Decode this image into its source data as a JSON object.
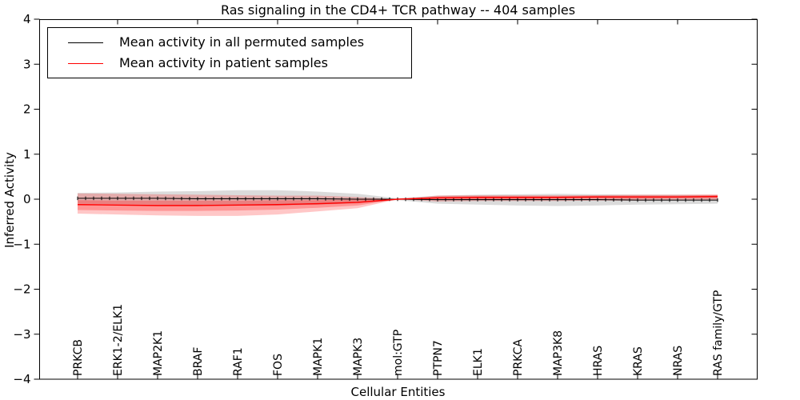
{
  "title": "Ras signaling in the CD4+ TCR pathway -- 404 samples",
  "chart_data": {
    "type": "line",
    "title": "Ras signaling in the CD4+ TCR pathway -- 404 samples",
    "xlabel": "Cellular Entities",
    "ylabel": "Inferred Activity",
    "ylim": [
      -4,
      4
    ],
    "yticks": [
      4,
      3,
      2,
      1,
      0,
      -1,
      -2,
      -3,
      -4
    ],
    "ytick_labels": [
      "4",
      "3",
      "2",
      "1",
      "0",
      "−1",
      "−2",
      "−3",
      "−4"
    ],
    "grid": false,
    "legend_position": "upper left",
    "categories": [
      "PRKCB",
      "ERK1-2/ELK1",
      "MAP2K1",
      "BRAF",
      "RAF1",
      "FOS",
      "MAPK1",
      "MAPK3",
      "mol:GTP",
      "PTPN7",
      "ELK1",
      "PRKCA",
      "MAP3K8",
      "HRAS",
      "KRAS",
      "NRAS",
      "RAS family/GTP"
    ],
    "series": [
      {
        "name": "Mean activity in all permuted samples",
        "color": "#000000",
        "marker": "plus",
        "values": [
          0.02,
          0.02,
          0.02,
          0.01,
          0.01,
          0.01,
          0.01,
          0.0,
          0.0,
          -0.01,
          -0.01,
          -0.01,
          -0.01,
          -0.01,
          -0.02,
          -0.02,
          -0.02
        ]
      },
      {
        "name": "Mean activity in patient samples",
        "color": "#ff0000",
        "marker": "none",
        "values": [
          -0.12,
          -0.13,
          -0.14,
          -0.14,
          -0.13,
          -0.12,
          -0.1,
          -0.07,
          0.0,
          0.03,
          0.04,
          0.04,
          0.04,
          0.05,
          0.05,
          0.05,
          0.06
        ]
      }
    ],
    "bands": [
      {
        "name": "permuted-samples-range",
        "color": "#888888",
        "opacity": 0.3,
        "upper": [
          0.14,
          0.15,
          0.17,
          0.18,
          0.2,
          0.2,
          0.17,
          0.12,
          0.02,
          0.08,
          0.1,
          0.11,
          0.12,
          0.11,
          0.1,
          0.1,
          0.09
        ],
        "lower": [
          -0.1,
          -0.11,
          -0.12,
          -0.13,
          -0.14,
          -0.14,
          -0.12,
          -0.09,
          -0.02,
          -0.1,
          -0.12,
          -0.14,
          -0.15,
          -0.14,
          -0.12,
          -0.11,
          -0.1
        ]
      },
      {
        "name": "patient-samples-range-outer",
        "color": "#ff0000",
        "opacity": 0.22,
        "upper": [
          0.13,
          0.12,
          0.11,
          0.1,
          0.09,
          0.08,
          0.08,
          0.05,
          0.0,
          0.08,
          0.09,
          0.09,
          0.09,
          0.09,
          0.1,
          0.1,
          0.11
        ],
        "lower": [
          -0.32,
          -0.34,
          -0.36,
          -0.37,
          -0.37,
          -0.34,
          -0.27,
          -0.2,
          0.0,
          -0.05,
          -0.04,
          -0.04,
          -0.04,
          -0.03,
          -0.03,
          -0.02,
          -0.02
        ]
      },
      {
        "name": "patient-samples-range-inner",
        "color": "#ff0000",
        "opacity": 0.25,
        "upper": [
          -0.02,
          -0.03,
          -0.03,
          -0.03,
          -0.03,
          -0.02,
          -0.02,
          -0.01,
          0.0,
          0.06,
          0.07,
          0.07,
          0.07,
          0.08,
          0.08,
          0.08,
          0.09
        ],
        "lower": [
          -0.24,
          -0.25,
          -0.26,
          -0.26,
          -0.25,
          -0.23,
          -0.19,
          -0.14,
          0.0,
          -0.01,
          0.0,
          0.0,
          0.01,
          0.01,
          0.01,
          0.02,
          0.02
        ]
      }
    ]
  }
}
